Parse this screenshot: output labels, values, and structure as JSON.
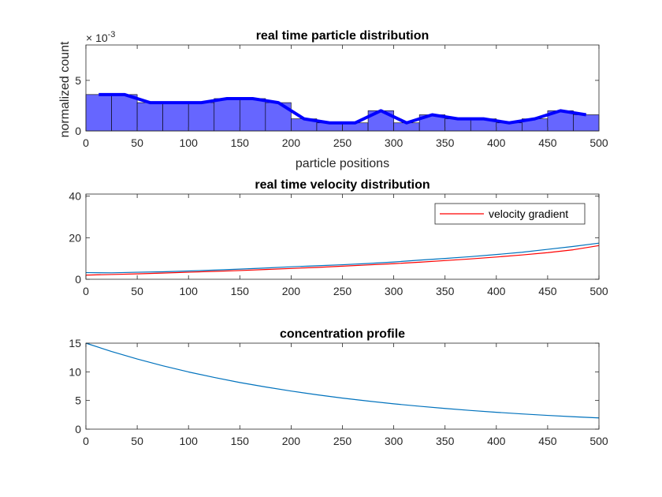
{
  "chart_data": [
    {
      "type": "bar",
      "title": "real time particle distribution",
      "xlabel": "particle positions",
      "ylabel": "normalized count",
      "y_exponent_label": "× 10^-3",
      "y_exponent_base": "10",
      "y_exponent_power": "-3",
      "xlim": [
        0,
        500
      ],
      "ylim": [
        0,
        8.5
      ],
      "xticks": [
        "0",
        "50",
        "100",
        "150",
        "200",
        "250",
        "300",
        "350",
        "400",
        "450",
        "500"
      ],
      "yticks": [
        "0",
        "5"
      ],
      "bin_width": 25,
      "bin_edges": [
        0,
        25,
        50,
        75,
        100,
        125,
        150,
        175,
        200,
        225,
        250,
        275,
        300,
        325,
        350,
        375,
        400,
        425,
        450,
        475,
        500
      ],
      "values": [
        3.6,
        3.6,
        2.8,
        2.8,
        2.8,
        3.2,
        3.2,
        2.8,
        1.2,
        0.8,
        0.8,
        2.0,
        0.8,
        1.6,
        1.2,
        1.2,
        0.8,
        1.2,
        2.0,
        1.6
      ],
      "bar_color": "#6666ff",
      "overlay_line": {
        "x": [
          12.5,
          37.5,
          62.5,
          87.5,
          112.5,
          137.5,
          162.5,
          187.5,
          212.5,
          237.5,
          262.5,
          287.5,
          312.5,
          337.5,
          362.5,
          387.5,
          412.5,
          437.5,
          462.5,
          487.5
        ],
        "values": [
          3.6,
          3.6,
          2.8,
          2.8,
          2.8,
          3.2,
          3.2,
          2.8,
          1.2,
          0.8,
          0.8,
          2.0,
          0.8,
          1.6,
          1.2,
          1.2,
          0.8,
          1.2,
          2.0,
          1.6
        ],
        "color": "#0000ff"
      }
    },
    {
      "type": "line",
      "title": "real time velocity distribution",
      "xlim": [
        0,
        500
      ],
      "ylim": [
        0,
        41
      ],
      "xticks": [
        "0",
        "50",
        "100",
        "150",
        "200",
        "250",
        "300",
        "350",
        "400",
        "450",
        "500"
      ],
      "yticks": [
        "0",
        "20",
        "40"
      ],
      "legend_position": "top-right",
      "series": [
        {
          "color": "#0072bd",
          "x": [
            0,
            25,
            50,
            75,
            100,
            125,
            150,
            175,
            200,
            225,
            250,
            275,
            300,
            325,
            350,
            375,
            400,
            425,
            450,
            475,
            500
          ],
          "values": [
            3.2,
            3.1,
            3.4,
            3.6,
            4.0,
            4.4,
            4.9,
            5.4,
            6.0,
            6.5,
            7.0,
            7.6,
            8.3,
            9.2,
            10.0,
            10.9,
            11.9,
            13.0,
            14.4,
            15.8,
            17.4
          ]
        },
        {
          "name": "velocity gradient",
          "color": "#ff0000",
          "x": [
            0,
            25,
            50,
            75,
            100,
            125,
            150,
            175,
            200,
            225,
            250,
            275,
            300,
            325,
            350,
            375,
            400,
            425,
            450,
            475,
            500
          ],
          "values": [
            2.0,
            2.3,
            2.6,
            3.0,
            3.4,
            3.8,
            4.2,
            4.7,
            5.2,
            5.7,
            6.3,
            6.9,
            7.5,
            8.2,
            9.0,
            9.8,
            10.7,
            11.7,
            12.8,
            14.2,
            16.2
          ]
        }
      ]
    },
    {
      "type": "line",
      "title": "concentration profile",
      "xlim": [
        0,
        500
      ],
      "ylim": [
        0,
        15
      ],
      "xticks": [
        "0",
        "50",
        "100",
        "150",
        "200",
        "250",
        "300",
        "350",
        "400",
        "450",
        "500"
      ],
      "yticks": [
        "0",
        "5",
        "10",
        "15"
      ],
      "series": [
        {
          "color": "#0072bd",
          "x": [
            0,
            25,
            50,
            75,
            100,
            125,
            150,
            175,
            200,
            225,
            250,
            275,
            300,
            325,
            350,
            375,
            400,
            425,
            450,
            475,
            500
          ],
          "values": [
            15.0,
            13.55,
            12.24,
            11.05,
            9.98,
            9.02,
            8.14,
            7.36,
            6.65,
            6.0,
            5.42,
            4.9,
            4.42,
            4.0,
            3.61,
            3.26,
            2.94,
            2.66,
            2.4,
            2.17,
            1.96
          ]
        }
      ]
    }
  ]
}
